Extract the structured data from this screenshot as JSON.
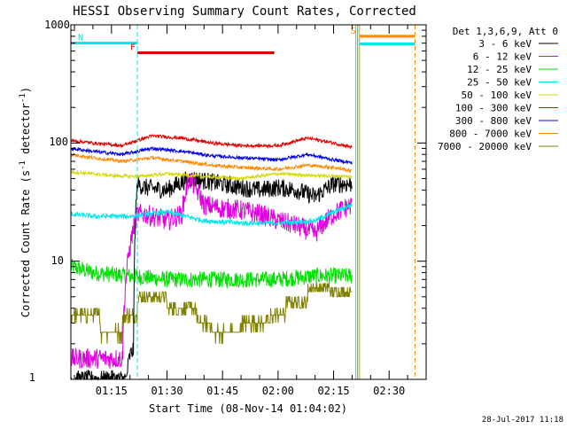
{
  "chart_data": {
    "type": "line",
    "title": "HESSI Observing Summary Count Rates, Corrected",
    "xlabel": "Start Time (08-Nov-14 01:04:02)",
    "ylabel_main": "Corrected Count Rate (s",
    "ylabel_sup1": "-1",
    "ylabel_mid": " detector",
    "ylabel_sup2": "-1",
    "ylabel_end": ")",
    "yscale": "log",
    "ylim": [
      1,
      1000
    ],
    "xlim": [
      "01:04:02",
      "02:40:00"
    ],
    "x_ticks": [
      "01:15",
      "01:30",
      "01:45",
      "02:00",
      "02:15",
      "02:30"
    ],
    "y_ticks": [
      "1",
      "10",
      "100",
      "1000"
    ],
    "date_stamp": "28-Jul-2017 11:18",
    "legend": {
      "header": "Det 1,3,6,9, Att 0",
      "entries": [
        {
          "label": "3 - 6 keV",
          "color": "#000000"
        },
        {
          "label": "6 - 12 keV",
          "color": "#e000e0"
        },
        {
          "label": "12 - 25 keV",
          "color": "#00e000"
        },
        {
          "label": "25 - 50 keV",
          "color": "#00e8e8"
        },
        {
          "label": "50 - 100 keV",
          "color": "#d8d800"
        },
        {
          "label": "100 - 300 keV",
          "color": "#e00000"
        },
        {
          "label": "300 - 800 keV",
          "color": "#0000e0"
        },
        {
          "label": "800 - 7000 keV",
          "color": "#ff8800"
        },
        {
          "label": "7000 - 20000 keV",
          "color": "#808000"
        }
      ]
    },
    "flags": [
      {
        "letter": "N",
        "color": "#00e8e8",
        "start": "01:04:02",
        "end": "01:22:00",
        "level": 700
      },
      {
        "letter": "F",
        "color": "#e00000",
        "start": "01:22:00",
        "end": "01:59:00",
        "level": 580
      },
      {
        "letter": "S",
        "color": "#ff8800",
        "start": "02:22:00",
        "end": "02:37:00",
        "level": 800
      },
      {
        "letter": "",
        "color": "#00e8e8",
        "start": "02:22:00",
        "end": "02:37:00",
        "level": 690
      }
    ],
    "vlines": [
      {
        "time": "01:22:00",
        "color": "#00e8e8",
        "style": "dashed"
      },
      {
        "time": "02:21:00",
        "color": "#00e8e8",
        "style": "solid"
      },
      {
        "time": "02:21:30",
        "color": "#00e000",
        "style": "solid"
      },
      {
        "time": "02:22:00",
        "color": "#ff8800",
        "style": "solid"
      },
      {
        "time": "02:37:00",
        "color": "#00e8e8",
        "style": "dashed"
      },
      {
        "time": "02:37:00",
        "color": "#ff8800",
        "style": "dashed"
      }
    ],
    "series": [
      {
        "name": "3 - 6 keV",
        "color": "#000000",
        "noise": 0.22,
        "x": [
          "01:04",
          "01:19",
          "01:20",
          "01:21",
          "01:22",
          "01:24",
          "01:30",
          "01:36",
          "01:40",
          "01:45",
          "01:50",
          "01:55",
          "02:00",
          "02:05",
          "02:10",
          "02:15",
          "02:20"
        ],
        "y": [
          1,
          1,
          1.6,
          1.8,
          45,
          42,
          40,
          50,
          48,
          45,
          42,
          40,
          42,
          40,
          35,
          45,
          45
        ]
      },
      {
        "name": "6 - 12 keV",
        "color": "#e000e0",
        "noise": 0.25,
        "x": [
          "01:04",
          "01:18",
          "01:22",
          "01:24",
          "01:30",
          "01:34",
          "01:36",
          "01:40",
          "01:45",
          "01:50",
          "01:55",
          "02:00",
          "02:05",
          "02:10",
          "02:15",
          "02:20"
        ],
        "y": [
          1.5,
          1.5,
          25,
          25,
          22,
          25,
          50,
          30,
          28,
          27,
          25,
          22,
          20,
          17,
          25,
          30
        ]
      },
      {
        "name": "12 - 25 keV",
        "color": "#00e000",
        "noise": 0.2,
        "x": [
          "01:04",
          "01:10",
          "01:20",
          "01:30",
          "01:40",
          "01:50",
          "02:00",
          "02:10",
          "02:20"
        ],
        "y": [
          9,
          8,
          7.5,
          7,
          7,
          7,
          7,
          7.5,
          7.5
        ]
      },
      {
        "name": "25 - 50 keV",
        "color": "#00e8e8",
        "noise": 0.06,
        "x": [
          "01:04",
          "01:10",
          "01:20",
          "01:30",
          "01:40",
          "01:50",
          "02:00",
          "02:10",
          "02:20"
        ],
        "y": [
          25,
          24,
          24,
          26,
          22,
          21,
          21,
          22,
          30
        ]
      },
      {
        "name": "50 - 100 keV",
        "color": "#d8d800",
        "noise": 0.04,
        "x": [
          "01:04",
          "01:15",
          "01:22",
          "01:30",
          "01:40",
          "01:50",
          "02:00",
          "02:10",
          "02:20"
        ],
        "y": [
          57,
          53,
          52,
          55,
          52,
          50,
          55,
          53,
          52
        ]
      },
      {
        "name": "100 - 300 keV",
        "color": "#e00000",
        "noise": 0.04,
        "x": [
          "01:04",
          "01:10",
          "01:18",
          "01:26",
          "01:34",
          "01:42",
          "01:50",
          "02:00",
          "02:08",
          "02:15",
          "02:20"
        ],
        "y": [
          105,
          100,
          95,
          115,
          110,
          100,
          95,
          95,
          110,
          100,
          92
        ]
      },
      {
        "name": "300 - 800 keV",
        "color": "#0000e0",
        "noise": 0.04,
        "x": [
          "01:04",
          "01:10",
          "01:18",
          "01:26",
          "01:34",
          "01:42",
          "01:50",
          "02:00",
          "02:08",
          "02:15",
          "02:20"
        ],
        "y": [
          90,
          85,
          80,
          90,
          85,
          78,
          75,
          72,
          80,
          72,
          68
        ]
      },
      {
        "name": "800 - 7000 keV",
        "color": "#ff8800",
        "noise": 0.04,
        "x": [
          "01:04",
          "01:10",
          "01:18",
          "01:26",
          "01:34",
          "01:42",
          "01:50",
          "02:00",
          "02:08",
          "02:15",
          "02:20"
        ],
        "y": [
          80,
          75,
          70,
          75,
          70,
          65,
          62,
          60,
          65,
          62,
          58
        ]
      },
      {
        "name": "7000 - 20000 keV",
        "color": "#808000",
        "noise": 0.15,
        "step": true,
        "x": [
          "01:04",
          "01:10",
          "01:12",
          "01:18",
          "01:21",
          "01:22",
          "01:30",
          "01:34",
          "01:38",
          "01:42",
          "01:46",
          "01:50",
          "01:54",
          "01:58",
          "02:02",
          "02:08",
          "02:14",
          "02:20"
        ],
        "y": [
          3.5,
          3.5,
          2.5,
          3.5,
          3.5,
          5,
          4,
          4,
          3,
          2.5,
          2.5,
          3,
          3,
          3.5,
          4.5,
          6,
          5.5,
          5
        ]
      }
    ]
  }
}
